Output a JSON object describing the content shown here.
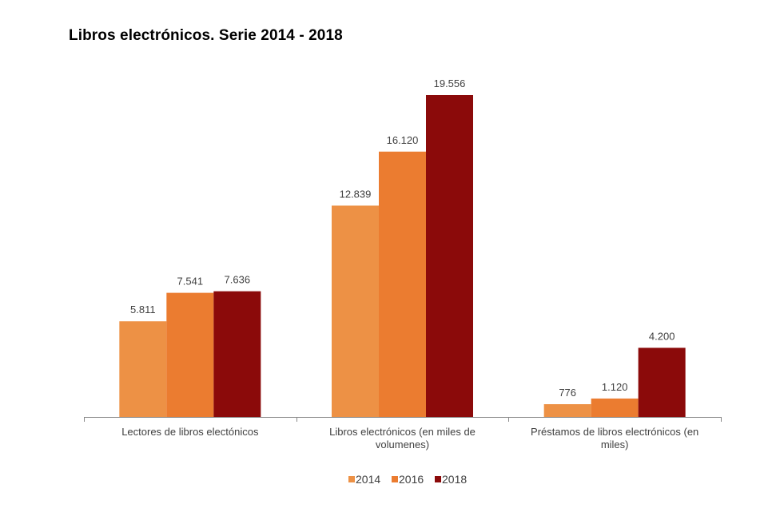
{
  "chart_data": {
    "type": "bar",
    "title": "Libros electrónicos. Serie 2014 - 2018",
    "xlabel": "",
    "ylabel": "",
    "ylim": [
      0,
      20000
    ],
    "grid": false,
    "legend_position": "bottom",
    "categories": [
      [
        "Lectores de libros electónicos"
      ],
      [
        "Libros electrónicos (en miles de",
        "volumenes)"
      ],
      [
        "Préstamos de libros electrónicos (en",
        "miles)"
      ]
    ],
    "series": [
      {
        "name": "2014",
        "color": "#ED9145",
        "values": [
          5811,
          12839,
          776
        ],
        "labels": [
          "5.811",
          "12.839",
          "776"
        ]
      },
      {
        "name": "2016",
        "color": "#EB7C30",
        "values": [
          7541,
          16120,
          1120
        ],
        "labels": [
          "7.541",
          "16.120",
          "1.120"
        ]
      },
      {
        "name": "2018",
        "color": "#8B0A0A",
        "values": [
          7636,
          19556,
          4200
        ],
        "labels": [
          "7.636",
          "19.556",
          "4.200"
        ]
      }
    ]
  }
}
